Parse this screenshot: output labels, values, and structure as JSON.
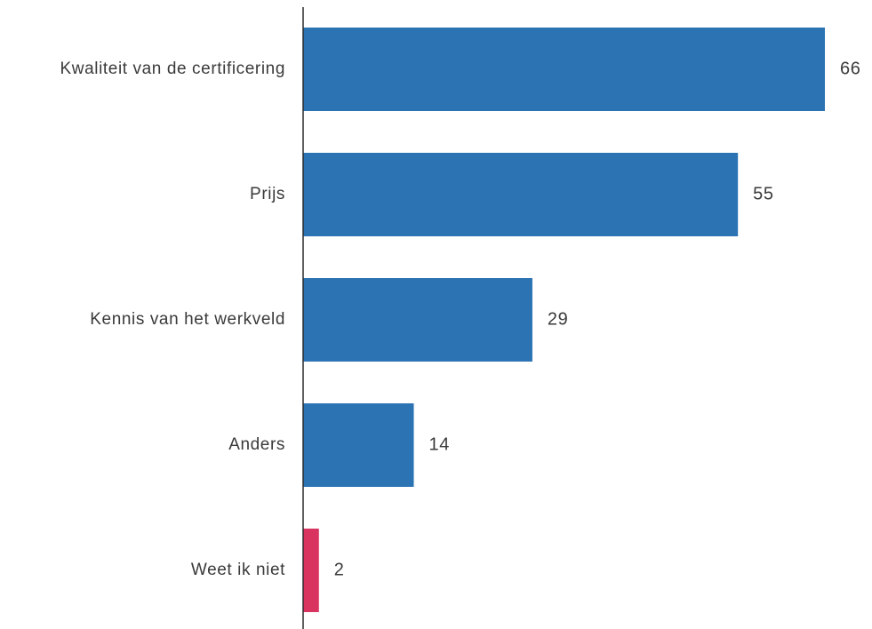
{
  "chart_data": {
    "type": "bar",
    "orientation": "horizontal",
    "categories": [
      "Kwaliteit van de certificering",
      "Prijs",
      "Kennis van het werkveld",
      "Anders",
      "Weet ik niet"
    ],
    "values": [
      66,
      55,
      29,
      14,
      2
    ],
    "bar_colors": [
      "#2b73b3",
      "#2b73b3",
      "#2b73b3",
      "#2b73b3",
      "#d8345f"
    ],
    "xlim": [
      0,
      66
    ],
    "title": "",
    "xlabel": "",
    "ylabel": "",
    "grid": false,
    "legend": "none"
  },
  "colors": {
    "primary_bar": "#2b73b3",
    "highlight_bar": "#d8345f",
    "axis": "#2a2a2a",
    "text": "#3a3a3a"
  }
}
